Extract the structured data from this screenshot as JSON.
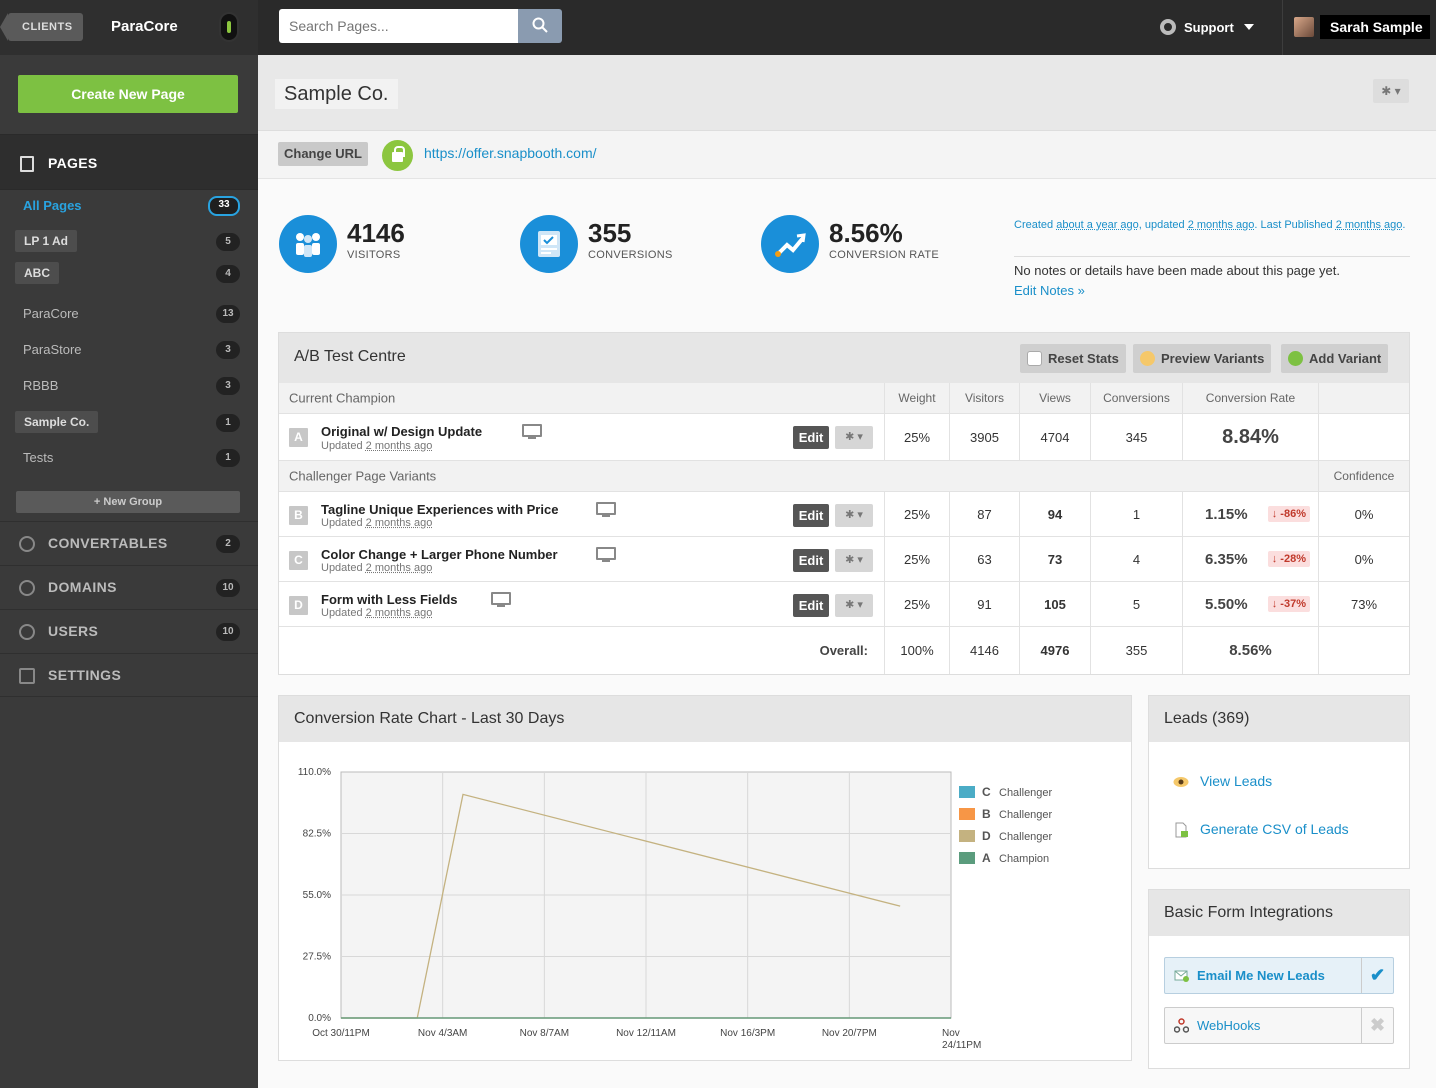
{
  "topbar": {
    "clients_label": "CLIENTS",
    "brand": "ParaCore",
    "search_placeholder": "Search Pages...",
    "support_label": "Support",
    "user_name": "Sarah Sample"
  },
  "sidebar": {
    "create_label": "Create New Page",
    "pages_label": "PAGES",
    "items": [
      {
        "label": "All Pages",
        "count": "33"
      },
      {
        "label": "LP 1 Ad",
        "count": "5"
      },
      {
        "label": "ABC",
        "count": "4"
      },
      {
        "label": "ParaCore",
        "count": "13"
      },
      {
        "label": "ParaStore",
        "count": "3"
      },
      {
        "label": "RBBB",
        "count": "3"
      },
      {
        "label": "Sample Co.",
        "count": "1"
      },
      {
        "label": "Tests",
        "count": "1"
      }
    ],
    "new_group_label": "+ New Group",
    "sections": [
      {
        "label": "CONVERTABLES",
        "count": "2"
      },
      {
        "label": "DOMAINS",
        "count": "10"
      },
      {
        "label": "USERS",
        "count": "10"
      },
      {
        "label": "SETTINGS",
        "count": ""
      }
    ]
  },
  "page": {
    "title": "Sample Co.",
    "change_url_label": "Change URL",
    "url": "https://offer.snapbooth.com/"
  },
  "stats": [
    {
      "value": "4146",
      "label": "VISITORS"
    },
    {
      "value": "355",
      "label": "CONVERSIONS"
    },
    {
      "value": "8.56%",
      "label": "CONVERSION RATE"
    }
  ],
  "meta": {
    "created_prefix": "Created ",
    "created": "about a year ago",
    "updated_prefix": ", updated ",
    "updated": "2 months ago",
    "published_prefix": ". Last Published ",
    "published": "2 months ago",
    "published_suffix": ".",
    "notes": "No notes or details have been made about this page yet.",
    "edit_notes": "Edit Notes »"
  },
  "ab": {
    "title": "A/B Test Centre",
    "reset_label": "Reset Stats",
    "preview_label": "Preview Variants",
    "add_label": "Add Variant",
    "champion_header": "Current Champion",
    "challenger_header": "Challenger Page Variants",
    "columns": [
      "Weight",
      "Visitors",
      "Views",
      "Conversions",
      "Conversion Rate"
    ],
    "confidence_header": "Confidence",
    "edit_label": "Edit",
    "updated_prefix": "Updated ",
    "champion": {
      "letter": "A",
      "name": "Original w/ Design Update",
      "updated": "2 months ago",
      "weight": "25%",
      "visitors": "3905",
      "views": "4704",
      "conversions": "345",
      "rate": "8.84%"
    },
    "challengers": [
      {
        "letter": "B",
        "name": "Tagline Unique Experiences with Price",
        "updated": "2 months ago",
        "weight": "25%",
        "visitors": "87",
        "views": "94",
        "conversions": "1",
        "rate": "1.15%",
        "change": "↓ -86%",
        "confidence": "0%"
      },
      {
        "letter": "C",
        "name": "Color Change + Larger Phone Number",
        "updated": "2 months ago",
        "weight": "25%",
        "visitors": "63",
        "views": "73",
        "conversions": "4",
        "rate": "6.35%",
        "change": "↓ -28%",
        "confidence": "0%"
      },
      {
        "letter": "D",
        "name": "Form with Less Fields",
        "updated": "2 months ago",
        "weight": "25%",
        "visitors": "91",
        "views": "105",
        "conversions": "5",
        "rate": "5.50%",
        "change": "↓ -37%",
        "confidence": "73%"
      }
    ],
    "overall": {
      "label": "Overall:",
      "weight": "100%",
      "visitors": "4146",
      "views": "4976",
      "conversions": "355",
      "rate": "8.56%"
    }
  },
  "chart_data": {
    "type": "line",
    "title": "Conversion Rate Chart - Last 30 Days",
    "x_ticks": [
      "Oct 30/11PM",
      "Nov 4/3AM",
      "Nov 8/7AM",
      "Nov 12/11AM",
      "Nov 16/3PM",
      "Nov 20/7PM",
      "Nov 24/11PM"
    ],
    "y_ticks": [
      "110.0%",
      "82.5%",
      "55.0%",
      "27.5%",
      "0.0%"
    ],
    "ylim": [
      0,
      110
    ],
    "xlim": [
      0,
      6
    ],
    "series": [
      {
        "name": "C",
        "role": "Challenger",
        "color": "#4bacc6",
        "points": [
          [
            0,
            0
          ],
          [
            6,
            0
          ]
        ]
      },
      {
        "name": "B",
        "role": "Challenger",
        "color": "#f79646",
        "points": [
          [
            0,
            0
          ],
          [
            6,
            0
          ]
        ]
      },
      {
        "name": "D",
        "role": "Challenger",
        "color": "#c4b280",
        "points": [
          [
            0,
            0
          ],
          [
            0.75,
            0
          ],
          [
            1.2,
            100
          ],
          [
            5.5,
            50
          ]
        ]
      },
      {
        "name": "A",
        "role": "Champion",
        "color": "#5b9c7d",
        "points": [
          [
            0,
            0
          ],
          [
            6,
            0
          ]
        ]
      }
    ]
  },
  "leads": {
    "title": "Leads (369)",
    "view_label": "View Leads",
    "csv_label": "Generate CSV of Leads"
  },
  "forms": {
    "title": "Basic Form Integrations",
    "email_label": "Email Me New Leads",
    "webhooks_label": "WebHooks"
  }
}
